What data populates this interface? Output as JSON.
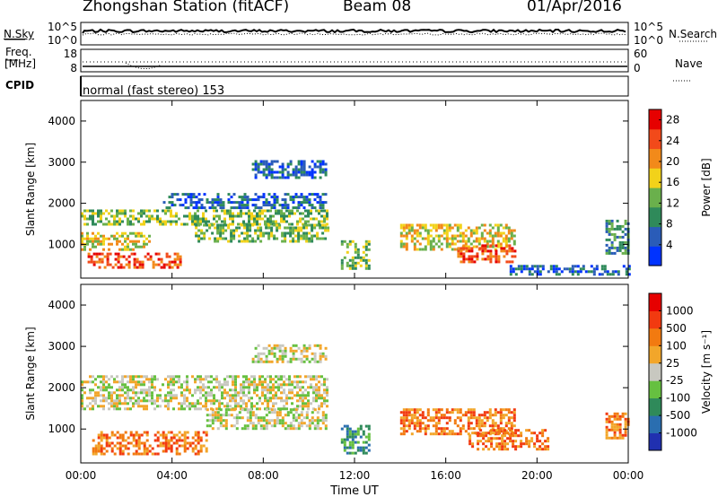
{
  "header": {
    "station": "Zhongshan Station (fitACF)",
    "beam": "Beam 08",
    "date": "01/Apr/2016"
  },
  "noise_panel": {
    "left_label": "N.Sky",
    "right_label": "N.Search",
    "ticks_left": [
      "10^5",
      "10^0"
    ],
    "ticks_right": [
      "10^5",
      "10^0"
    ]
  },
  "freq_panel": {
    "left_label_1": "Freq.",
    "left_label_2": "[MHz]",
    "right_label": "Nave",
    "ticks_left": [
      "18",
      "8"
    ],
    "ticks_right": [
      "60",
      "0"
    ]
  },
  "cpid": {
    "label": "CPID",
    "value": "normal (fast stereo) 153"
  },
  "chart_data": [
    {
      "type": "heatmap",
      "title": "",
      "xlabel": "Time UT",
      "ylabel": "Slant Range [km]",
      "x_ticks": [
        "00:00",
        "04:00",
        "08:00",
        "12:00",
        "16:00",
        "20:00",
        "00:00"
      ],
      "y_ticks": [
        "1000",
        "2000",
        "3000",
        "4000"
      ],
      "xlim_hours": [
        0,
        24
      ],
      "ylim_km": [
        180,
        4500
      ],
      "colorbar": {
        "label": "Power [dB]",
        "ticks": [
          "4",
          "8",
          "12",
          "16",
          "20",
          "24",
          "28"
        ],
        "range": [
          0,
          30
        ],
        "colors": [
          "#0033ff",
          "#2a5cb8",
          "#2f8a5a",
          "#6ab04c",
          "#f2d21a",
          "#f28a1a",
          "#f24a1a",
          "#e60000"
        ]
      },
      "regions": [
        {
          "t": [
            0.0,
            10.8
          ],
          "r": [
            1500,
            1850
          ],
          "level": 3
        },
        {
          "t": [
            0.0,
            3.0
          ],
          "r": [
            850,
            1300
          ],
          "level": 4
        },
        {
          "t": [
            0.3,
            4.4
          ],
          "r": [
            450,
            800
          ],
          "level": 6
        },
        {
          "t": [
            5.0,
            10.8
          ],
          "r": [
            1100,
            1500
          ],
          "level": 3
        },
        {
          "t": [
            3.6,
            10.7
          ],
          "r": [
            1900,
            2250
          ],
          "level": 1
        },
        {
          "t": [
            7.5,
            10.8
          ],
          "r": [
            2600,
            3050
          ],
          "level": 1
        },
        {
          "t": [
            11.4,
            12.6
          ],
          "r": [
            400,
            1100
          ],
          "level": 3
        },
        {
          "t": [
            14.0,
            19.0
          ],
          "r": [
            900,
            1500
          ],
          "level": 4
        },
        {
          "t": [
            16.5,
            19.0
          ],
          "r": [
            600,
            1000
          ],
          "level": 6
        },
        {
          "t": [
            18.8,
            24.0
          ],
          "r": [
            300,
            500
          ],
          "level": 1
        },
        {
          "t": [
            23.0,
            24.0
          ],
          "r": [
            800,
            1600
          ],
          "level": 2
        }
      ]
    },
    {
      "type": "heatmap",
      "title": "",
      "xlabel": "Time UT",
      "ylabel": "Slant Range [km]",
      "x_ticks": [
        "00:00",
        "04:00",
        "08:00",
        "12:00",
        "16:00",
        "20:00",
        "00:00"
      ],
      "y_ticks": [
        "1000",
        "2000",
        "3000",
        "4000"
      ],
      "xlim_hours": [
        0,
        24
      ],
      "ylim_km": [
        180,
        4500
      ],
      "colorbar": {
        "label": "Velocity [m s⁻¹]",
        "ticks": [
          "1000",
          "500",
          "100",
          "25",
          "-25",
          "-100",
          "-500",
          "-1000"
        ],
        "range": [
          -1000,
          1000
        ],
        "colors": [
          "#2030b0",
          "#2a6eb0",
          "#2f8a5a",
          "#66c040",
          "#c8c8c0",
          "#f2a62a",
          "#f27a10",
          "#f23a10",
          "#e60000"
        ]
      },
      "regions": [
        {
          "t": [
            0.0,
            10.8
          ],
          "r": [
            1500,
            2300
          ],
          "level": 4
        },
        {
          "t": [
            0.5,
            5.5
          ],
          "r": [
            400,
            950
          ],
          "level": 6
        },
        {
          "t": [
            5.5,
            10.8
          ],
          "r": [
            1000,
            1500
          ],
          "level": 4
        },
        {
          "t": [
            7.5,
            10.8
          ],
          "r": [
            2600,
            3050
          ],
          "level": 4
        },
        {
          "t": [
            11.4,
            12.6
          ],
          "r": [
            400,
            1100
          ],
          "level": 2
        },
        {
          "t": [
            14.0,
            19.0
          ],
          "r": [
            900,
            1500
          ],
          "level": 6
        },
        {
          "t": [
            17.0,
            20.5
          ],
          "r": [
            500,
            1000
          ],
          "level": 6
        },
        {
          "t": [
            23.0,
            24.0
          ],
          "r": [
            800,
            1400
          ],
          "level": 6
        }
      ]
    }
  ]
}
